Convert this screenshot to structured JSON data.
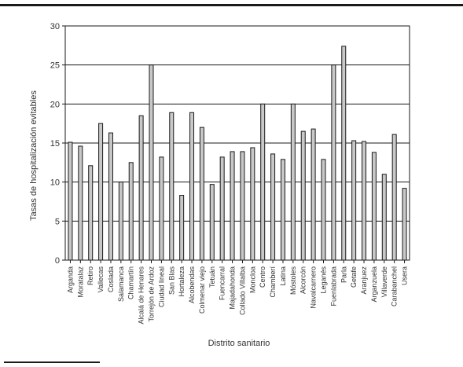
{
  "chart_data": {
    "type": "bar",
    "xlabel": "Distrito sanitario",
    "ylabel": "Tasas de hospitalización evitables",
    "ylim": [
      0,
      30
    ],
    "yticks": [
      0,
      5,
      10,
      15,
      20,
      25,
      30
    ],
    "grid": true,
    "bar_color": "#c8c8c8",
    "categories": [
      "Arganda",
      "Moratalaz",
      "Retiro",
      "Vallecas",
      "Coslada",
      "Salamanca",
      "Chamartín",
      "Alcalá de Henares",
      "Torrejón de Ardoz",
      "Ciudad lineal",
      "San Blas",
      "Hortaleza",
      "Alcobendas",
      "Colmenar viejo",
      "Tetuán",
      "Fuencarral",
      "Majadahonda",
      "Collado Villalba",
      "Moncloa",
      "Centro",
      "Chamberí",
      "Latina",
      "Móstoles",
      "Alcorcón",
      "Navalcarnero",
      "Leganés",
      "Fuenlabrada",
      "Parla",
      "Getafe",
      "Aranjuez",
      "Arganzuela",
      "Villaverde",
      "Carabanchel",
      "Usera"
    ],
    "values": [
      15.1,
      14.6,
      12.1,
      17.5,
      16.3,
      10.0,
      12.5,
      18.5,
      25.0,
      13.2,
      18.9,
      8.3,
      18.9,
      17.0,
      9.7,
      13.2,
      13.9,
      13.9,
      14.4,
      20.0,
      13.6,
      12.9,
      20.0,
      16.5,
      16.8,
      12.9,
      25.0,
      27.4,
      15.3,
      15.2,
      13.8,
      11.0,
      16.1,
      9.2
    ]
  }
}
